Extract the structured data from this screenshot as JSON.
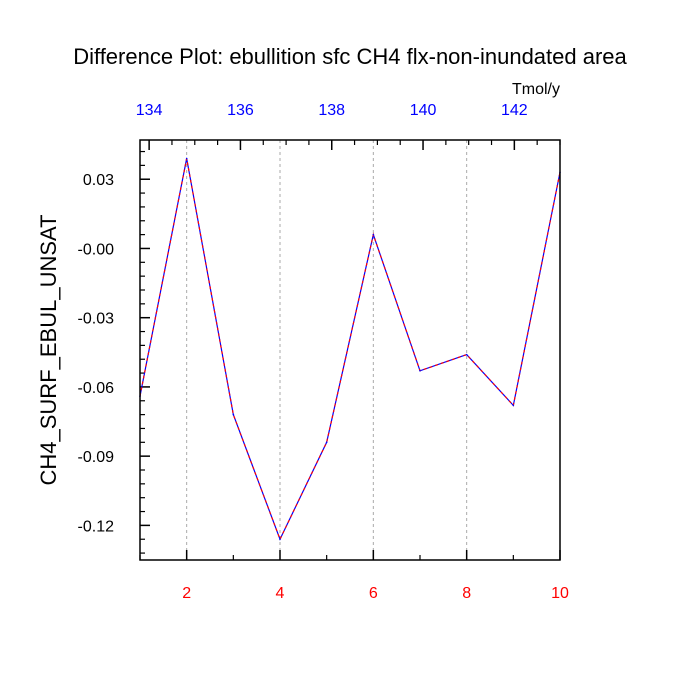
{
  "chart_data": {
    "type": "line",
    "title": "Difference Plot: ebullition sfc CH4 flx-non-inundated area",
    "ylabel": "CH4_SURF_EBUL_UNSAT",
    "top_axis_units": "Tmol/y",
    "xlim": [
      1,
      10
    ],
    "ylim": [
      -0.135,
      0.047
    ],
    "x_ticks": [
      2,
      4,
      6,
      8,
      10
    ],
    "x_tick_labels": [
      "2",
      "4",
      "6",
      "8",
      "10"
    ],
    "x_minor_ticks": [
      1,
      3,
      5,
      7,
      9
    ],
    "y_ticks": [
      0.03,
      0.0,
      -0.03,
      -0.06,
      -0.09,
      -0.12
    ],
    "y_tick_labels": [
      "0.03",
      "-0.00",
      "-0.03",
      "-0.06",
      "-0.09",
      "-0.12"
    ],
    "top_xlim": [
      133.8,
      143.0
    ],
    "top_ticks": [
      134,
      136,
      138,
      140,
      142
    ],
    "top_tick_labels": [
      "134",
      "136",
      "138",
      "140",
      "142"
    ],
    "gridlines_x": [
      2,
      4,
      6,
      8
    ],
    "series": [
      {
        "name": "CH4_SURF_EBUL_UNSAT",
        "x": [
          1,
          2,
          3,
          4,
          5,
          6,
          7,
          8,
          9,
          10
        ],
        "values": [
          -0.064,
          0.039,
          -0.072,
          -0.126,
          -0.084,
          0.006,
          -0.053,
          -0.046,
          -0.068,
          0.033
        ]
      }
    ],
    "colors": {
      "line": "#0000ff",
      "line_overlay": "#ff0000",
      "bottom_tick_labels": "#ff0000",
      "top_tick_labels": "#0000ff",
      "left_tick_labels": "#000000",
      "grid": "#aaaaaa"
    }
  }
}
